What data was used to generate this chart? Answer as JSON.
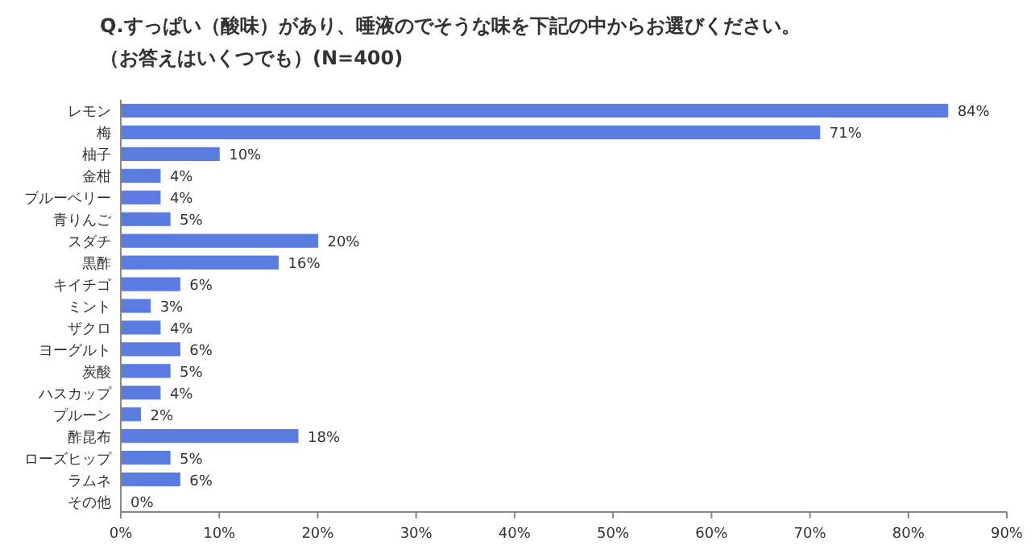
{
  "chart_data": {
    "type": "bar",
    "orientation": "horizontal",
    "title": "Q.すっぱい（酸味）があり、唾液のでそうな味を下記の中からお選びください。",
    "subtitle": "（お答えはいくつでも）(N=400)",
    "categories": [
      "レモン",
      "梅",
      "柚子",
      "金柑",
      "ブルーベリー",
      "青りんご",
      "スダチ",
      "黒酢",
      "キイチゴ",
      "ミント",
      "ザクロ",
      "ヨーグルト",
      "炭酸",
      "ハスカップ",
      "プルーン",
      "酢昆布",
      "ローズヒップ",
      "ラムネ",
      "その他"
    ],
    "values": [
      84,
      71,
      10,
      4,
      4,
      5,
      20,
      16,
      6,
      3,
      4,
      6,
      5,
      4,
      2,
      18,
      5,
      6,
      0
    ],
    "value_labels": [
      "84%",
      "71%",
      "10%",
      "4%",
      "4%",
      "5%",
      "20%",
      "16%",
      "6%",
      "3%",
      "4%",
      "6%",
      "5%",
      "4%",
      "2%",
      "18%",
      "5%",
      "6%",
      "0%"
    ],
    "color": "#5a7be0",
    "xlim": [
      0,
      90
    ],
    "xticks": [
      {
        "value": 0,
        "label": "0%"
      },
      {
        "value": 10,
        "label": "10%"
      },
      {
        "value": 20,
        "label": "20%"
      },
      {
        "value": 30,
        "label": "30%"
      },
      {
        "value": 40,
        "label": "40%"
      },
      {
        "value": 50,
        "label": "50%"
      },
      {
        "value": 60,
        "label": "60%"
      },
      {
        "value": 70,
        "label": "70%"
      },
      {
        "value": 80,
        "label": "80%"
      },
      {
        "value": 90,
        "label": "90%"
      }
    ],
    "grid": false
  }
}
